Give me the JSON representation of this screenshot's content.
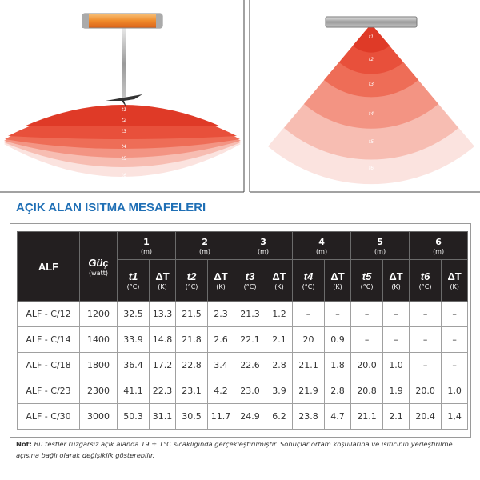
{
  "illustrations": {
    "pole_labels": [
      "t1",
      "t2",
      "t3",
      "t4",
      "t5",
      "t6"
    ],
    "wall_labels": [
      "t1",
      "t2",
      "t3",
      "t4",
      "t5",
      "t6"
    ]
  },
  "title": "AÇIK ALAN ISITMA MESAFELERI",
  "table": {
    "model_header": "ALF",
    "power_header": "Güç",
    "power_unit": "(watt)",
    "groups": [
      {
        "distance": "1",
        "distance_unit": "(m)",
        "temp": "t1",
        "temp_unit": "(°C)",
        "delta": "ΔT",
        "delta_unit": "(K)"
      },
      {
        "distance": "2",
        "distance_unit": "(m)",
        "temp": "t2",
        "temp_unit": "(°C)",
        "delta": "ΔT",
        "delta_unit": "(K)"
      },
      {
        "distance": "3",
        "distance_unit": "(m)",
        "temp": "t3",
        "temp_unit": "(°C)",
        "delta": "ΔT",
        "delta_unit": "(K)"
      },
      {
        "distance": "4",
        "distance_unit": "(m)",
        "temp": "t4",
        "temp_unit": "(°C)",
        "delta": "ΔT",
        "delta_unit": "(K)"
      },
      {
        "distance": "5",
        "distance_unit": "(m)",
        "temp": "t5",
        "temp_unit": "(°C)",
        "delta": "ΔT",
        "delta_unit": "(K)"
      },
      {
        "distance": "6",
        "distance_unit": "(m)",
        "temp": "t6",
        "temp_unit": "(°C)",
        "delta": "ΔT",
        "delta_unit": "(K)"
      }
    ],
    "rows": [
      [
        "ALF - C/12",
        "1200",
        "32.5",
        "13.3",
        "21.5",
        "2.3",
        "21.3",
        "1.2",
        "–",
        "–",
        "–",
        "–",
        "–",
        "–"
      ],
      [
        "ALF - C/14",
        "1400",
        "33.9",
        "14.8",
        "21.8",
        "2.6",
        "22.1",
        "2.1",
        "20",
        "0.9",
        "–",
        "–",
        "–",
        "–"
      ],
      [
        "ALF - C/18",
        "1800",
        "36.4",
        "17.2",
        "22.8",
        "3.4",
        "22.6",
        "2.8",
        "21.1",
        "1.8",
        "20.0",
        "1.0",
        "–",
        "–"
      ],
      [
        "ALF - C/23",
        "2300",
        "41.1",
        "22.3",
        "23.1",
        "4.2",
        "23.0",
        "3.9",
        "21.9",
        "2.8",
        "20.8",
        "1.9",
        "20.0",
        "1,0"
      ],
      [
        "ALF - C/30",
        "3000",
        "50.3",
        "31.1",
        "30.5",
        "11.7",
        "24.9",
        "6.2",
        "23.8",
        "4.7",
        "21.1",
        "2.1",
        "20.4",
        "1,4"
      ]
    ]
  },
  "note": {
    "label": "Not:",
    "text": " Bu testler rüzgarsız açık alanda 19 ± 1°C sıcaklığında gerçekleştirilmiştir. Sonuçlar ortam koşullarına ve ısıtıcının yerleştirilme açısına bağlı olarak değişiklik gösterebilir."
  }
}
